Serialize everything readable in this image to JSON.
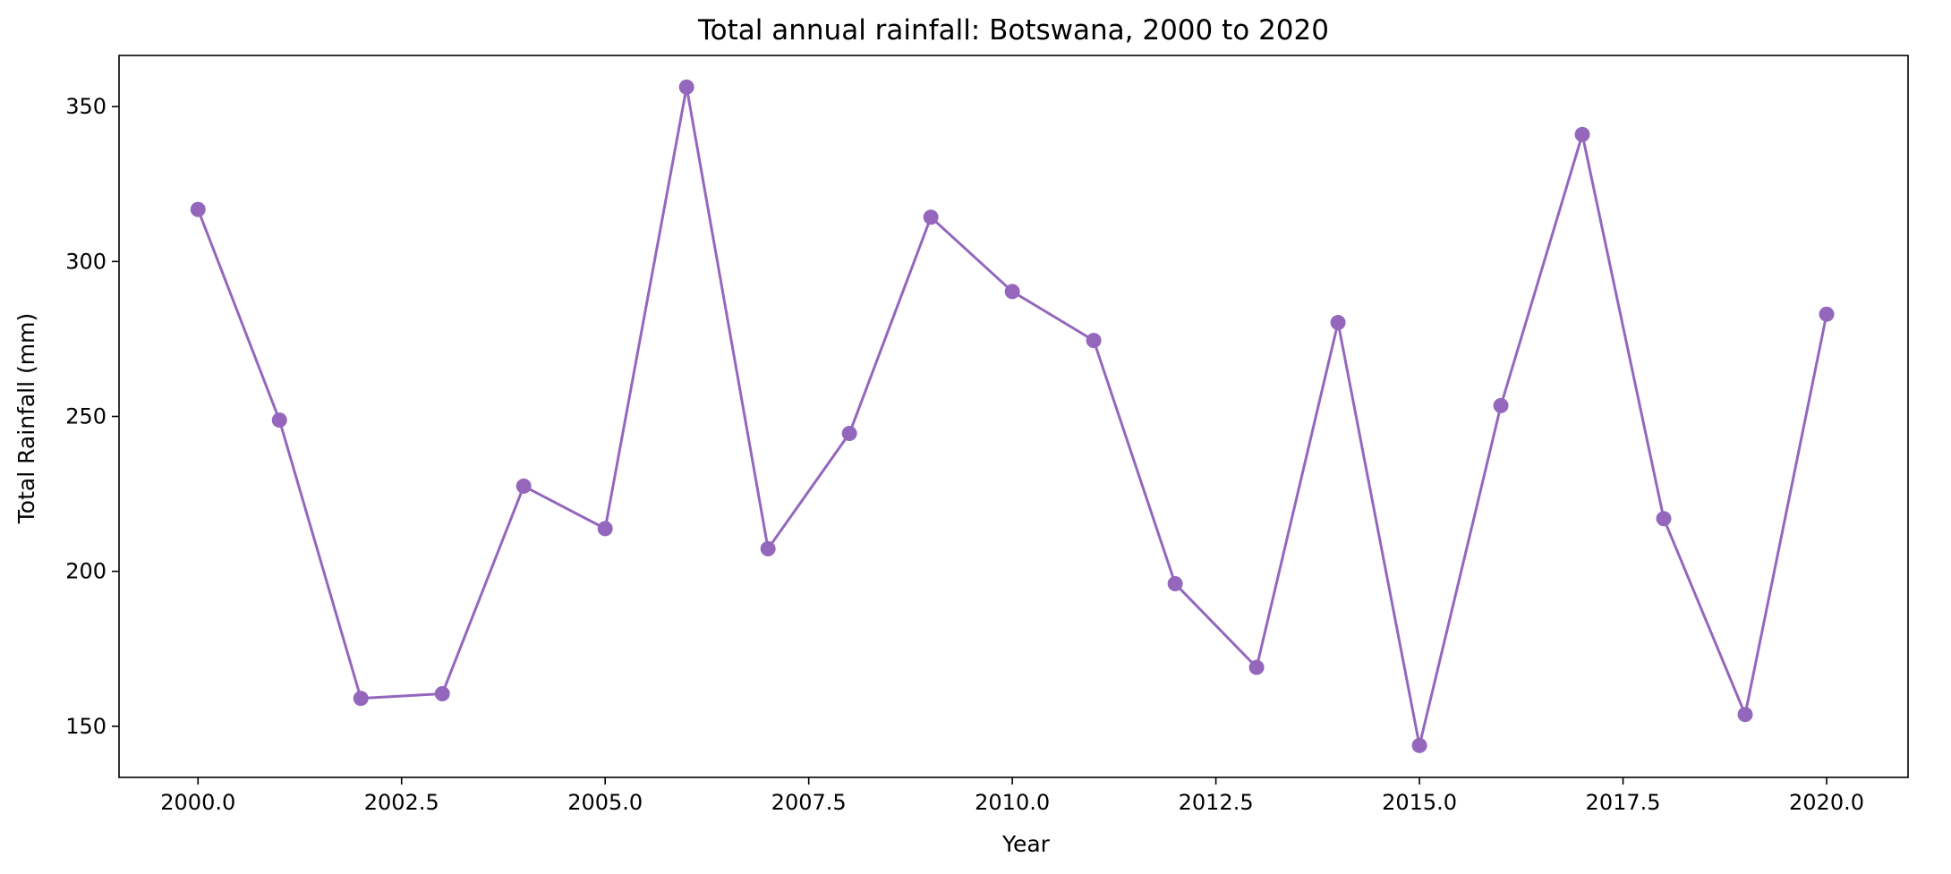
{
  "chart_data": {
    "type": "line",
    "title": "Total annual rainfall: Botswana, 2000 to 2020",
    "xlabel": "Year",
    "ylabel": "Total Rainfall (mm)",
    "x": [
      2000,
      2001,
      2002,
      2003,
      2004,
      2005,
      2006,
      2007,
      2008,
      2009,
      2010,
      2011,
      2012,
      2013,
      2014,
      2015,
      2016,
      2017,
      2018,
      2019,
      2020
    ],
    "series": [
      {
        "values": [
          316.8,
          248.8,
          159.0,
          160.5,
          227.5,
          213.8,
          356.3,
          207.3,
          244.5,
          314.3,
          290.3,
          274.5,
          196.0,
          169.0,
          280.3,
          143.8,
          253.5,
          341.0,
          217.0,
          153.8,
          283.0
        ],
        "color": "#9467bd",
        "marker": "circle"
      }
    ],
    "xlim": [
      1999.03,
      2021.0
    ],
    "ylim": [
      133.5,
      366.5
    ],
    "xticks": [
      2000,
      2002.5,
      2005,
      2007.5,
      2010,
      2012.5,
      2015,
      2017.5,
      2020
    ],
    "xtick_labels": [
      "2000.0",
      "2002.5",
      "2005.0",
      "2007.5",
      "2010.0",
      "2012.5",
      "2015.0",
      "2017.5",
      "2020.0"
    ],
    "yticks": [
      150,
      200,
      250,
      300,
      350
    ],
    "ytick_labels": [
      "150",
      "200",
      "250",
      "300",
      "350"
    ],
    "grid": false
  }
}
